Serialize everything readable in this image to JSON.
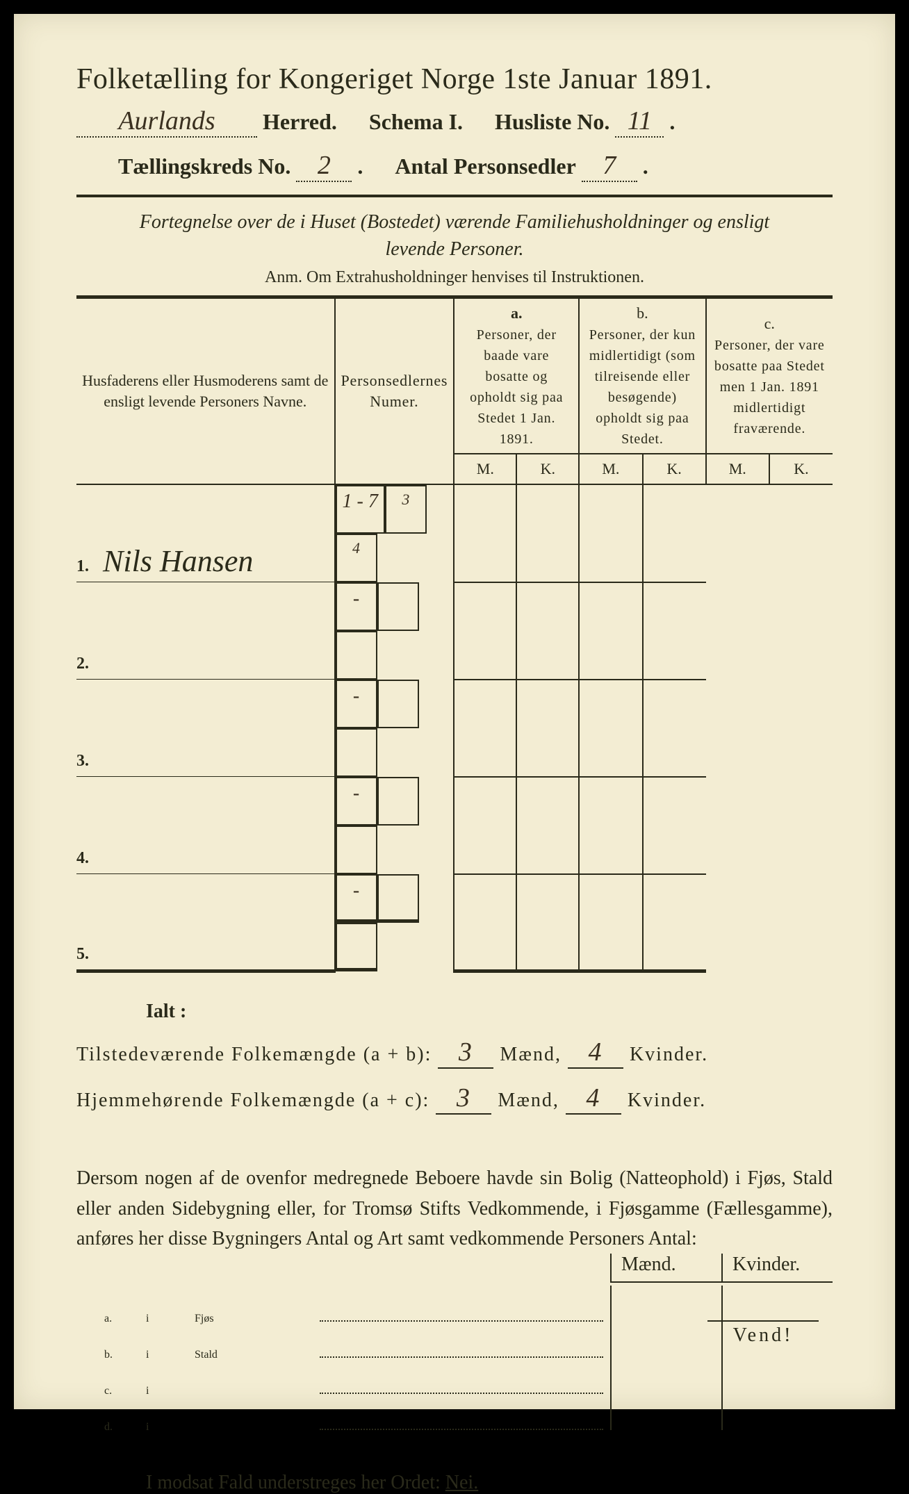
{
  "header": {
    "title": "Folketælling for Kongeriget Norge 1ste Januar 1891.",
    "herred_value": "Aurlands",
    "herred_label": "Herred.",
    "schema_label": "Schema I.",
    "husliste_label": "Husliste No.",
    "husliste_value": "11",
    "kreds_label": "Tællingskreds No.",
    "kreds_value": "2",
    "personsedler_label": "Antal Personsedler",
    "personsedler_value": "7"
  },
  "subtitle": {
    "line1": "Fortegnelse over de i Huset (Bostedet) værende Familiehusholdninger og ensligt",
    "line2": "levende Personer.",
    "anm": "Anm.  Om Extrahusholdninger henvises til Instruktionen."
  },
  "table": {
    "col_names": "Husfaderens eller Husmoderens samt de ensligt levende Personers Navne.",
    "col_numer": "Personsedlernes Numer.",
    "col_a_hdr": "a.",
    "col_a": "Personer, der baade vare bosatte og opholdt sig paa Stedet 1 Jan. 1891.",
    "col_b_hdr": "b.",
    "col_b": "Personer, der kun midlertidigt (som tilreisende eller besøgende) opholdt sig paa Stedet.",
    "col_c_hdr": "c.",
    "col_c": "Personer, der vare bosatte paa Stedet men 1 Jan. 1891 midlertidigt fraværende.",
    "M": "M.",
    "K": "K.",
    "rows": [
      {
        "num": "1.",
        "name": "Nils Hansen",
        "numer": "1 - 7",
        "aM": "3",
        "aK": "4",
        "bM": "",
        "bK": "",
        "cM": "",
        "cK": ""
      },
      {
        "num": "2.",
        "name": "",
        "numer": "-",
        "aM": "",
        "aK": "",
        "bM": "",
        "bK": "",
        "cM": "",
        "cK": ""
      },
      {
        "num": "3.",
        "name": "",
        "numer": "-",
        "aM": "",
        "aK": "",
        "bM": "",
        "bK": "",
        "cM": "",
        "cK": ""
      },
      {
        "num": "4.",
        "name": "",
        "numer": "-",
        "aM": "",
        "aK": "",
        "bM": "",
        "bK": "",
        "cM": "",
        "cK": ""
      },
      {
        "num": "5.",
        "name": "",
        "numer": "-",
        "aM": "",
        "aK": "",
        "bM": "",
        "bK": "",
        "cM": "",
        "cK": ""
      }
    ]
  },
  "totals": {
    "ialt": "Ialt :",
    "line1_label": "Tilstedeværende Folkemængde (a + b):",
    "line2_label": "Hjemmehørende Folkemængde (a + c):",
    "maend": "Mænd,",
    "kvinder": "Kvinder.",
    "line1_m": "3",
    "line1_k": "4",
    "line2_m": "3",
    "line2_k": "4"
  },
  "dersom": "Dersom nogen af de ovenfor medregnede Beboere havde sin Bolig (Natteophold) i Fjøs, Stald eller anden Sidebygning eller, for Tromsø Stifts Vedkommende, i Fjøsgamme (Fællesgamme), anføres her disse Bygningers Antal og Art samt vedkommende Personers Antal:",
  "outbuildings": {
    "hdr_m": "Mænd.",
    "hdr_k": "Kvinder.",
    "rows": [
      {
        "label": "a.",
        "i": "i",
        "name": "Fjøs"
      },
      {
        "label": "b.",
        "i": "i",
        "name": "Stald"
      },
      {
        "label": "c.",
        "i": "i",
        "name": ""
      },
      {
        "label": "d.",
        "i": "i",
        "name": ""
      }
    ]
  },
  "nei_line": {
    "text": "I modsat Fald understreges her Ordet: ",
    "nei": "Nei."
  },
  "vend": "Vend!",
  "colors": {
    "paper": "#f3edd3",
    "ink": "#2a2a1a",
    "border": "#000000"
  }
}
